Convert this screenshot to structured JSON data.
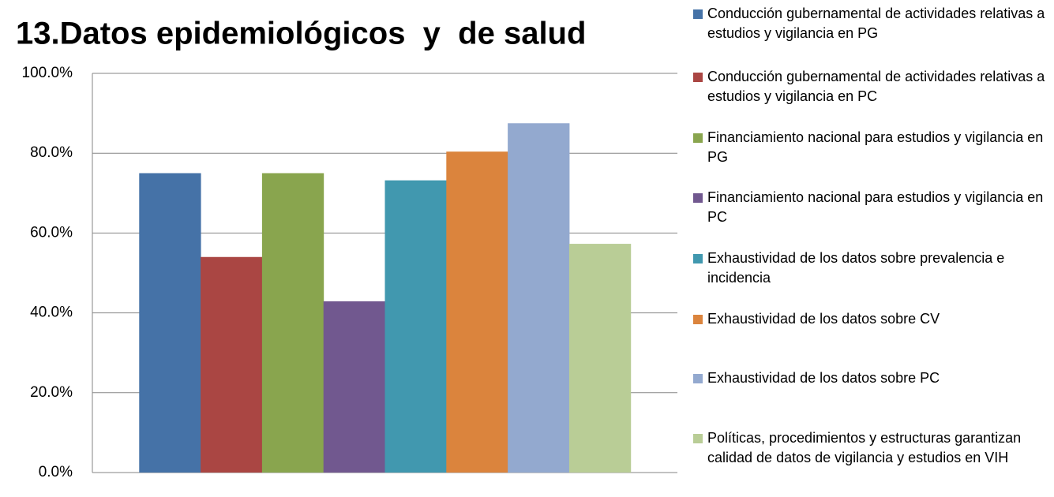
{
  "chart_data": {
    "type": "bar",
    "title": "13.Datos epidemiológicos  y  de salud",
    "categories": [
      null
    ],
    "series": [
      {
        "name": "Conducción gubernamental de actividades relativas a estudios y vigilancia en PG",
        "color": "#4572a7",
        "values": [
          75.0
        ]
      },
      {
        "name": "Conducción gubernamental de actividades relativas a estudios y vigilancia en PC",
        "color": "#aa4643",
        "values": [
          54.0
        ]
      },
      {
        "name": "Financiamiento nacional para estudios y vigilancia en PG",
        "color": "#89a54e",
        "values": [
          75.0
        ]
      },
      {
        "name": "Financiamiento nacional para estudios y vigilancia en PC",
        "color": "#71588f",
        "values": [
          42.9
        ]
      },
      {
        "name": "Exhaustividad de los datos sobre prevalencia e incidencia",
        "color": "#4198af",
        "values": [
          73.2
        ]
      },
      {
        "name": "Exhaustividad de los datos sobre CV",
        "color": "#db843d",
        "values": [
          80.4
        ]
      },
      {
        "name": "Exhaustividad de los datos sobre PC",
        "color": "#93a9cf",
        "values": [
          87.5
        ]
      },
      {
        "name": "Políticas, procedimientos y estructuras garantizan calidad de datos de vigilancia y estudios en  VIH",
        "color": "#b9cd96",
        "values": [
          57.3
        ]
      }
    ],
    "ylim": [
      0,
      100
    ],
    "yticks": [
      {
        "value": 0,
        "label": "0.0%"
      },
      {
        "value": 20,
        "label": "20.0%"
      },
      {
        "value": 40,
        "label": "40.0%"
      },
      {
        "value": 60,
        "label": "60.0%"
      },
      {
        "value": 80,
        "label": "80.0%"
      },
      {
        "value": 100,
        "label": "100.0%"
      }
    ],
    "grid": true,
    "legend": "right"
  }
}
